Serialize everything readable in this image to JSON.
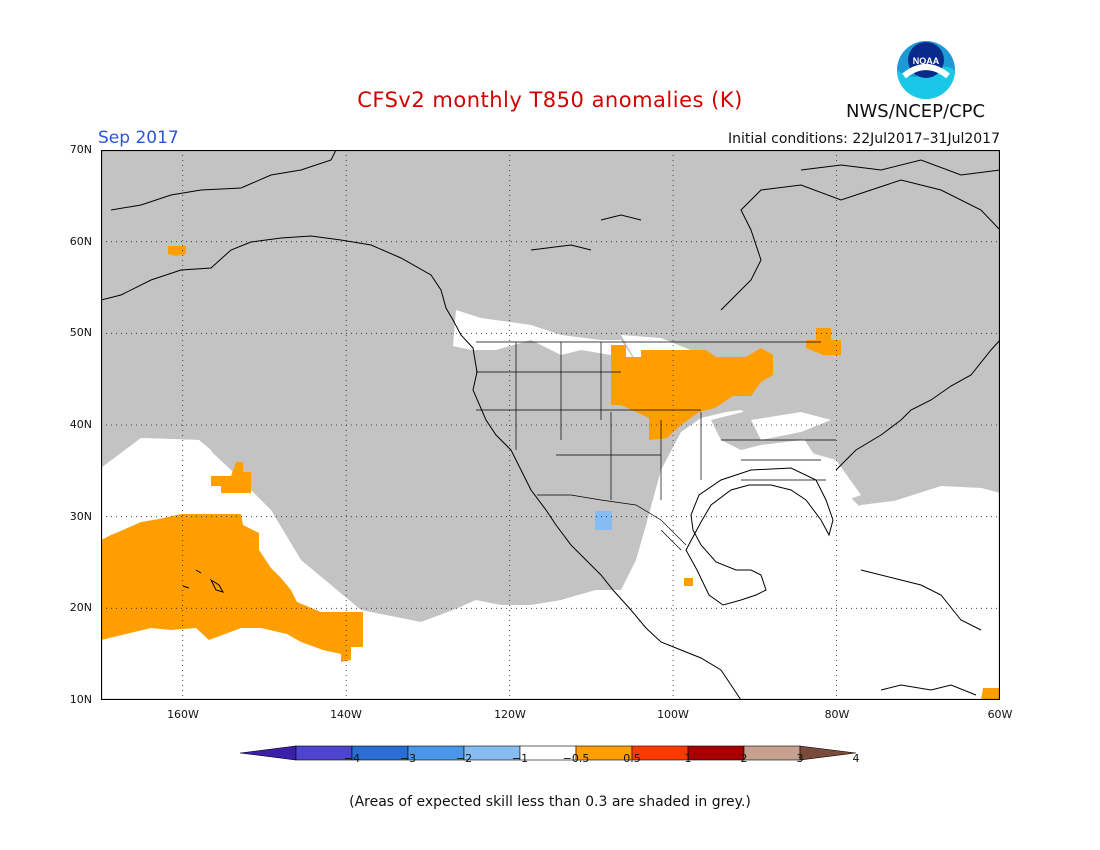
{
  "title": "CFSv2 monthly T850 anomalies (K)",
  "valid_month": "Sep 2017",
  "initial_conditions": "Initial conditions: 22Jul2017–31Jul2017",
  "agency": "NWS/NCEP/CPC",
  "logo_text": "NOAA",
  "footnote": "(Areas of expected skill less than 0.3 are shaded in grey.)",
  "lat_labels": [
    "70N",
    "60N",
    "50N",
    "40N",
    "30N",
    "20N",
    "10N"
  ],
  "lon_labels": [
    "160W",
    "140W",
    "120W",
    "100W",
    "80W",
    "60W"
  ],
  "colorbar": {
    "tick_labels": [
      "−4",
      "−3",
      "−2",
      "−1",
      "−0.5",
      "0.5",
      "1",
      "2",
      "3",
      "4"
    ],
    "colors": [
      "#3a1fa8",
      "#4d44d0",
      "#2a6ed4",
      "#4a96e8",
      "#86bcf2",
      "#ffffff",
      "#ff9e00",
      "#ff3a00",
      "#a80000",
      "#c8a090",
      "#7a4a3a"
    ]
  },
  "map_colors": {
    "land_low_skill": "#c3c3c3",
    "positive_anomaly": "#ff9e00",
    "negative_anomaly": "#86bcf2",
    "coastline": "#000000"
  }
}
